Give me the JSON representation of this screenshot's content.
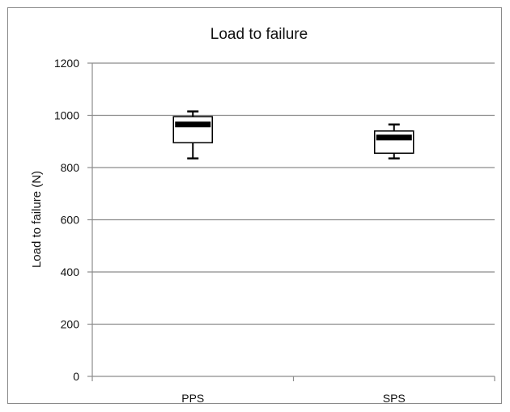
{
  "chart_data": {
    "type": "box",
    "title": "Load to failure",
    "xlabel": "",
    "ylabel": "Load to failure (N)",
    "ylim": [
      0,
      1200
    ],
    "yticks": [
      0,
      200,
      400,
      600,
      800,
      1000,
      1200
    ],
    "categories": [
      "PPS",
      "SPS"
    ],
    "grid": "horizontal",
    "series": [
      {
        "category": "PPS",
        "whisker_low": 835,
        "q1": 895,
        "median": 965,
        "q3": 995,
        "whisker_high": 1015
      },
      {
        "category": "SPS",
        "whisker_low": 835,
        "q1": 855,
        "median": 915,
        "q3": 940,
        "whisker_high": 965
      }
    ]
  }
}
